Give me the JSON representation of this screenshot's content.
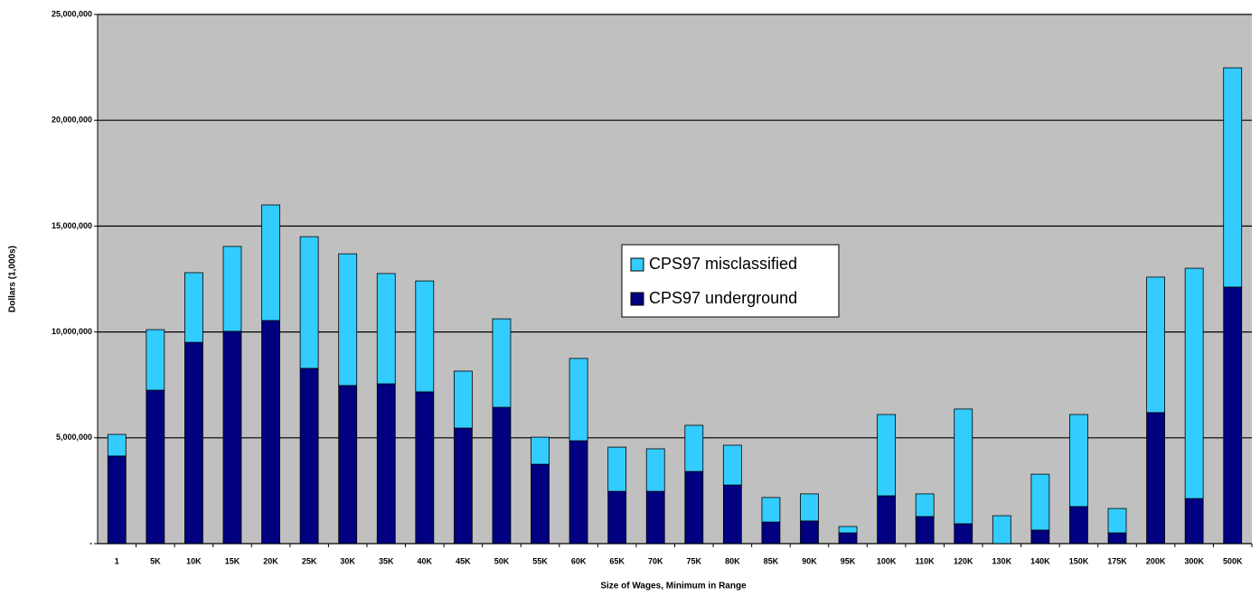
{
  "chart_data": {
    "type": "stacked-bar",
    "x_label": "Size of Wages, Minimum in Range",
    "y_label": "Dollars (1,000s)",
    "categories": [
      "1",
      "5K",
      "10K",
      "15K",
      "20K",
      "25K",
      "30K",
      "35K",
      "40K",
      "45K",
      "50K",
      "55K",
      "60K",
      "65K",
      "70K",
      "75K",
      "80K",
      "85K",
      "90K",
      "95K",
      "100K",
      "110K",
      "120K",
      "130K",
      "140K",
      "150K",
      "175K",
      "200K",
      "300K",
      "500K"
    ],
    "series": [
      {
        "name": "CPS97 underground",
        "color": "#000080",
        "values": [
          4140000,
          7250000,
          9510000,
          10030000,
          10540000,
          8280000,
          7470000,
          7550000,
          7170000,
          5460000,
          6440000,
          3750000,
          4860000,
          2470000,
          2470000,
          3410000,
          2770000,
          1020000,
          1070000,
          510000,
          2260000,
          1280000,
          940000,
          0,
          640000,
          1750000,
          510000,
          6190000,
          2130000,
          12120000
        ]
      },
      {
        "name": "CPS97 misclassified",
        "color": "#33ccff",
        "values": [
          1020000,
          2860000,
          3290000,
          4010000,
          5460000,
          6220000,
          6220000,
          5210000,
          5240000,
          2690000,
          4180000,
          1280000,
          3890000,
          2090000,
          2010000,
          2180000,
          1880000,
          1160000,
          1280000,
          300000,
          3840000,
          1070000,
          5420000,
          1320000,
          2640000,
          4350000,
          1150000,
          6400000,
          10880000,
          10360000
        ]
      }
    ],
    "ylim": [
      0,
      25000000
    ],
    "yticks": [
      {
        "value": 0,
        "label": "-"
      },
      {
        "value": 5000000,
        "label": "5,000,000"
      },
      {
        "value": 10000000,
        "label": "10,000,000"
      },
      {
        "value": 15000000,
        "label": "15,000,000"
      },
      {
        "value": 20000000,
        "label": "20,000,000"
      },
      {
        "value": 25000000,
        "label": "25,000,000"
      }
    ],
    "grid": true,
    "plot_background": "#c0c0c0",
    "legend": "center"
  }
}
